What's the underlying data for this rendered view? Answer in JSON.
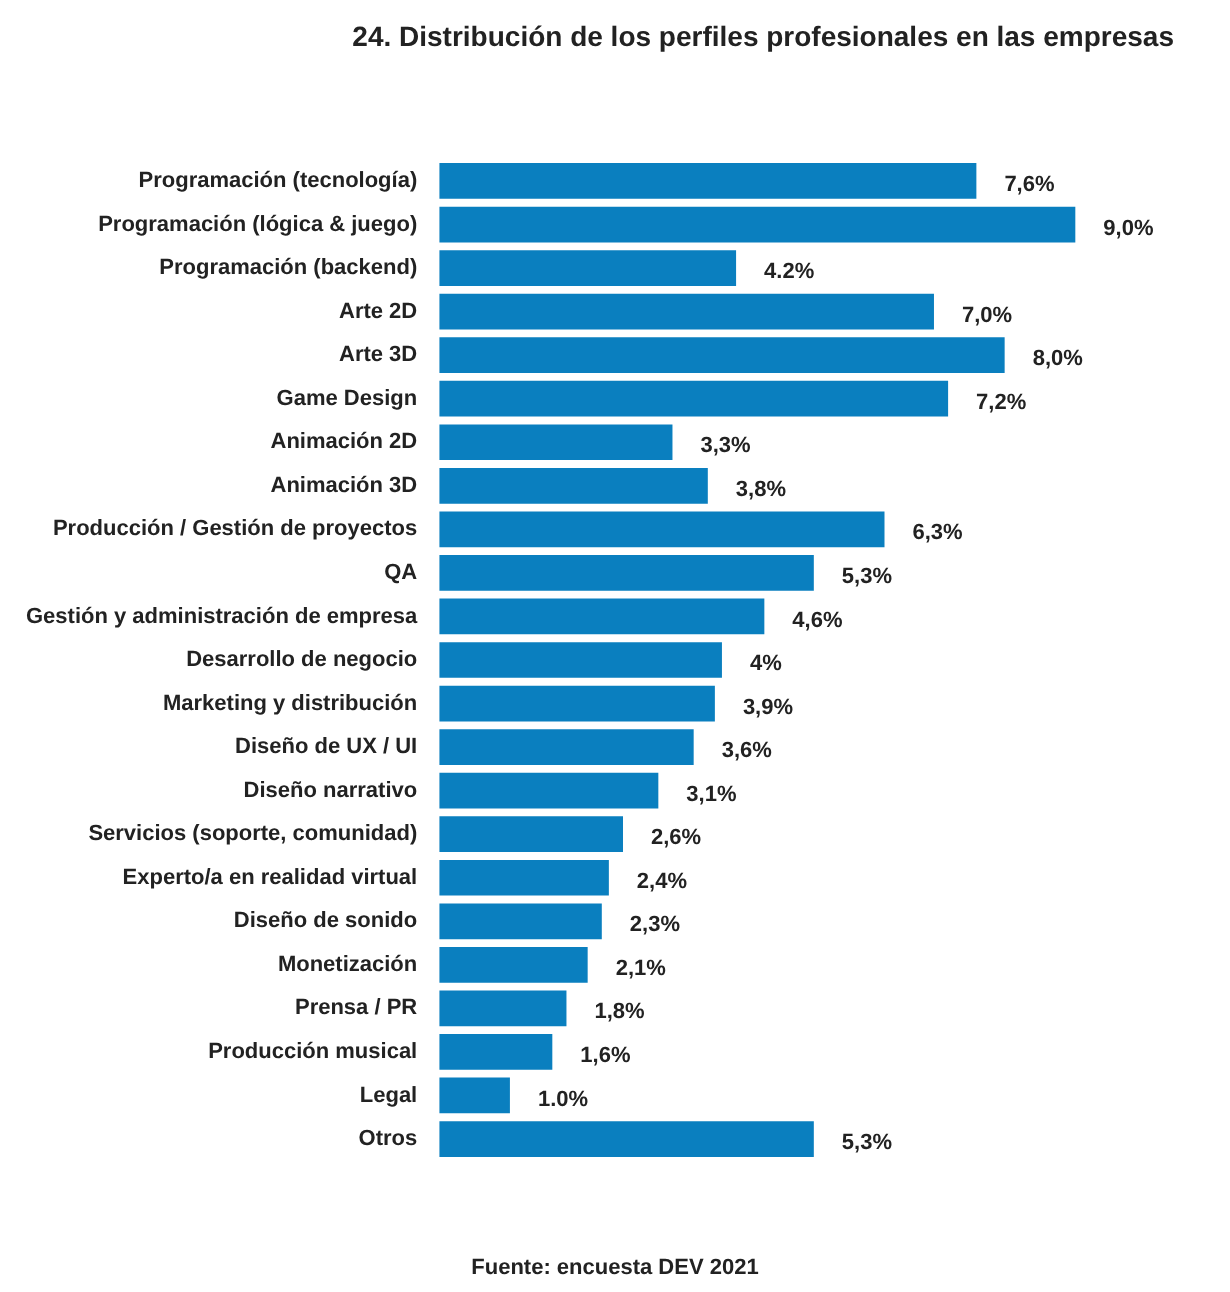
{
  "chart_data": {
    "type": "bar",
    "orientation": "horizontal",
    "title": "24. Distribución de los perfiles profesionales en las empresas",
    "categories": [
      "Programación (tecnología)",
      "Programación (lógica & juego)",
      "Programación (backend)",
      "Arte 2D",
      "Arte 3D",
      "Game Design",
      "Animación 2D",
      "Animación 3D",
      "Producción / Gestión de proyectos",
      "QA",
      "Gestión y administración de empresa",
      "Desarrollo de negocio",
      "Marketing y distribución",
      "Diseño de UX / UI",
      "Diseño narrativo",
      "Servicios (soporte, comunidad)",
      "Experto/a en realidad virtual",
      "Diseño de sonido",
      "Monetización",
      "Prensa / PR",
      "Producción musical",
      "Legal",
      "Otros"
    ],
    "values": [
      7.6,
      9.0,
      4.2,
      7.0,
      8.0,
      7.2,
      3.3,
      3.8,
      6.3,
      5.3,
      4.6,
      4,
      3.9,
      3.6,
      3.1,
      2.6,
      2.4,
      2.3,
      2.1,
      1.8,
      1.6,
      1.0,
      5.3
    ],
    "value_labels": [
      "7,6%",
      "9,0%",
      "4.2%",
      "7,0%",
      "8,0%",
      "7,2%",
      "3,3%",
      "3,8%",
      "6,3%",
      "5,3%",
      "4,6%",
      "4%",
      "3,9%",
      "3,6%",
      "3,1%",
      "2,6%",
      "2,4%",
      "2,3%",
      "2,1%",
      "1,8%",
      "1,6%",
      "1.0%",
      "5,3%"
    ],
    "color": "#0a7fbf",
    "annotations": [
      "Fuente: encuesta DEV 2021"
    ]
  }
}
